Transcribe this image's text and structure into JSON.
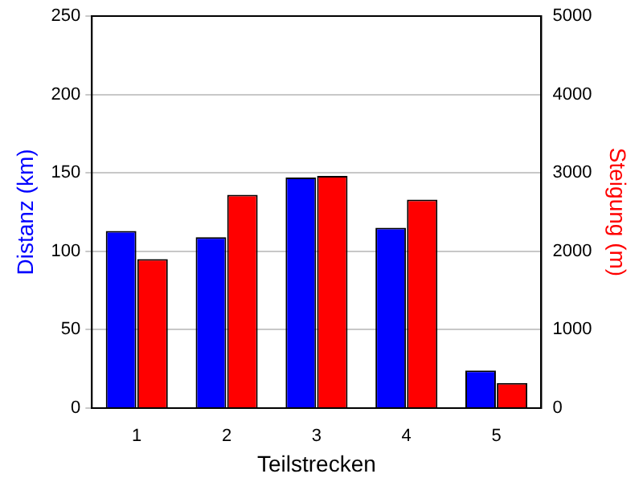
{
  "chart_data": {
    "type": "bar",
    "xlabel": "Teilstrecken",
    "ylabel": "Distanz (km)",
    "y2label": "Steigung (m)",
    "categories": [
      "1",
      "2",
      "3",
      "4",
      "5"
    ],
    "series": [
      {
        "color": "#0000ff",
        "values": [
          113,
          109,
          147,
          115,
          24
        ]
      },
      {
        "color": "#ff0000",
        "axis": "y2",
        "values": [
          1900,
          2720,
          2960,
          2660,
          320
        ]
      }
    ],
    "ylim": [
      0,
      250
    ],
    "yticks": [
      0,
      50,
      100,
      150,
      200,
      250
    ],
    "y2lim": [
      0,
      5000
    ],
    "y2ticks": [
      0,
      1000,
      2000,
      3000,
      4000,
      5000
    ],
    "grid": "y",
    "legend": false
  }
}
